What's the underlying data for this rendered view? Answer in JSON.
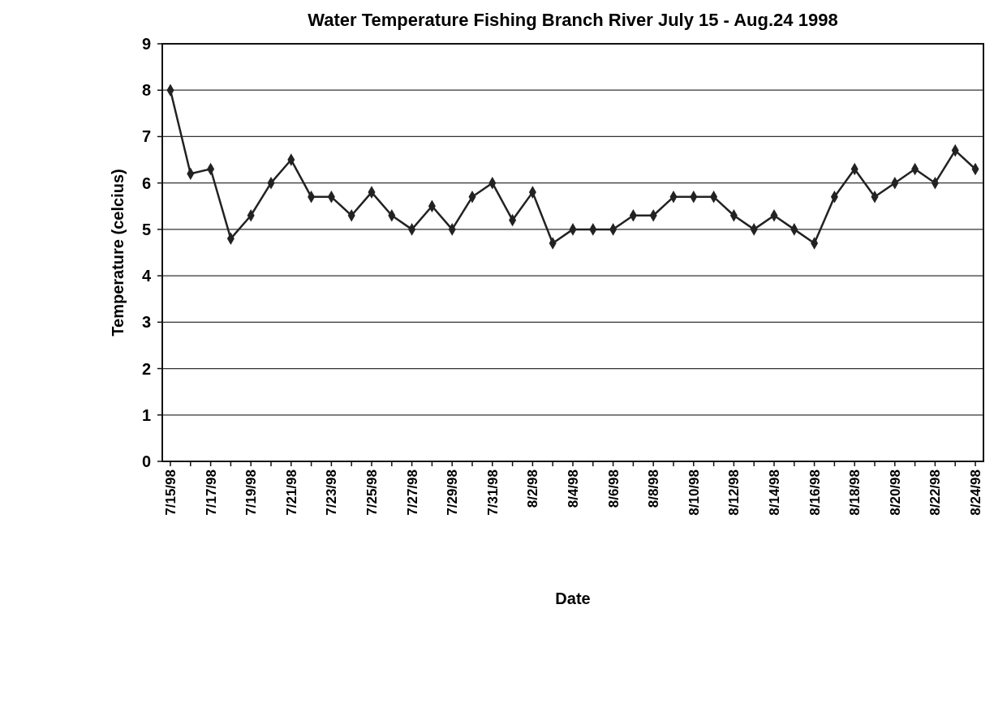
{
  "chart_data": {
    "type": "line",
    "title": "Water Temperature Fishing Branch River July 15 - Aug.24 1998",
    "xlabel": "Date",
    "ylabel": "Temperature (celcius)",
    "categories": [
      "7/15/98",
      null,
      "7/17/98",
      null,
      "7/19/98",
      null,
      "7/21/98",
      null,
      "7/23/98",
      null,
      "7/25/98",
      null,
      "7/27/98",
      null,
      "7/29/98",
      null,
      "7/31/98",
      null,
      "8/2/98",
      null,
      "8/4/98",
      null,
      "8/6/98",
      null,
      "8/8/98",
      null,
      "8/10/98",
      null,
      "8/12/98",
      null,
      "8/14/98",
      null,
      "8/16/98",
      null,
      "8/18/98",
      null,
      "8/20/98",
      null,
      "8/22/98",
      null,
      "8/24/98"
    ],
    "series": [
      {
        "color": "#222222",
        "values": [
          8.0,
          6.2,
          6.3,
          4.8,
          5.3,
          6.0,
          6.5,
          5.7,
          5.7,
          5.3,
          5.8,
          5.3,
          5.0,
          5.5,
          5.0,
          5.7,
          6.0,
          5.2,
          5.8,
          4.7,
          5.0,
          5.0,
          5.0,
          5.3,
          5.3,
          5.7,
          5.7,
          5.7,
          5.3,
          5.0,
          5.3,
          5.0,
          4.7,
          5.7,
          6.3,
          5.7,
          6.0,
          6.3,
          6.0,
          6.7,
          6.3
        ]
      }
    ],
    "ylim": [
      0,
      9
    ],
    "yticks": [
      0,
      1,
      2,
      3,
      4,
      5,
      6,
      7,
      8,
      9
    ],
    "grid": "y",
    "marker": "diamond",
    "line_style": "solid"
  }
}
